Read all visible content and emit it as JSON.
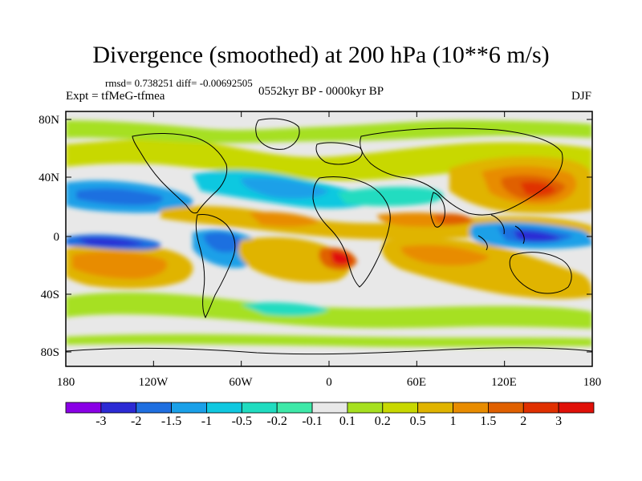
{
  "title": "Divergence (smoothed) at 200 hPa (10**6 m/s)",
  "stats": {
    "rmsd_text": "rmsd= 0.738251 diff= -0.00692505"
  },
  "experiment": "Expt = tfMeG-tfmea",
  "period": "0552kyr BP - 0000kyr BP",
  "season": "DJF",
  "axes": {
    "lat_labels": [
      "80N",
      "40N",
      "0",
      "40S",
      "80S"
    ],
    "lon_labels": [
      "180",
      "120W",
      "60W",
      "0",
      "60E",
      "120E",
      "180"
    ]
  },
  "colorbar": {
    "labels": [
      "-3",
      "-2",
      "-1.5",
      "-1",
      "-0.5",
      "-0.2",
      "-0.1",
      "0.1",
      "0.2",
      "0.5",
      "1",
      "1.5",
      "2",
      "3"
    ],
    "colors": [
      "#8a00e6",
      "#2c2ad4",
      "#1f6fe0",
      "#1aa0e8",
      "#10c8e0",
      "#20dcc0",
      "#3ee8a8",
      "#e8e8e8",
      "#a6e020",
      "#c8d800",
      "#e0b400",
      "#e88c00",
      "#e06000",
      "#e03000",
      "#e01008"
    ]
  },
  "colors": {
    "background": "#e8e8e8",
    "frame": "#000000"
  }
}
